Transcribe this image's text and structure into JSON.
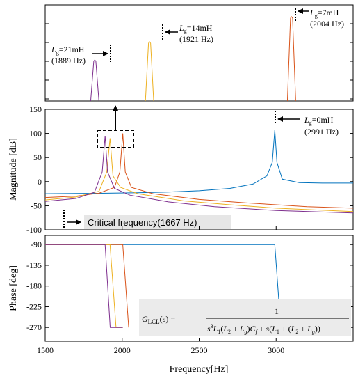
{
  "chart_data": [
    {
      "type": "line",
      "panel": "zoom",
      "xlim": [
        1860,
        2040
      ],
      "grid": false,
      "series": [
        {
          "color": "#7e2f8e",
          "peak_x": 1889
        },
        {
          "color": "#edb120",
          "peak_x": 1921
        },
        {
          "color": "#d95319",
          "peak_x": 2004
        }
      ],
      "annotations": [
        {
          "prefix": "L",
          "sub": "g",
          "value": "=21mH",
          "freq": "(1889 Hz)"
        },
        {
          "prefix": "L",
          "sub": "g",
          "value": "=14mH",
          "freq": "(1921 Hz)"
        },
        {
          "prefix": "L",
          "sub": "g",
          "value": "=7mH",
          "freq": "(2004 Hz)"
        }
      ]
    },
    {
      "type": "line",
      "panel": "magnitude",
      "ylabel": "Magnitude [dB]",
      "xlim": [
        1500,
        3500
      ],
      "ylim": [
        -100,
        150
      ],
      "yticks": [
        "150",
        "100",
        "50",
        "0",
        "-50",
        "-100"
      ],
      "grid": false,
      "series": [
        {
          "color": "#0072bd",
          "x": [
            1500,
            1700,
            1900,
            2100,
            2300,
            2500,
            2700,
            2850,
            2940,
            2975,
            2991,
            3005,
            3040,
            3150,
            3300,
            3500
          ],
          "y": [
            -25,
            -24.5,
            -24,
            -23,
            -21.5,
            -19,
            -14,
            -5,
            12,
            40,
            107,
            40,
            5,
            -2,
            -3,
            -3
          ]
        },
        {
          "color": "#d95319",
          "x": [
            1500,
            1700,
            1850,
            1950,
            1985,
            2004,
            2020,
            2060,
            2200,
            2500,
            2800,
            3000,
            3200,
            3500
          ],
          "y": [
            -33,
            -30,
            -24,
            -12,
            20,
            100,
            20,
            -12,
            -25,
            -37,
            -44,
            -48,
            -52,
            -55
          ]
        },
        {
          "color": "#edb120",
          "x": [
            1500,
            1700,
            1850,
            1900,
            1921,
            1940,
            1990,
            2100,
            2400,
            2700,
            3000,
            3200,
            3500
          ],
          "y": [
            -38,
            -32,
            -20,
            20,
            90,
            12,
            -12,
            -25,
            -40,
            -48,
            -55,
            -58,
            -62
          ]
        },
        {
          "color": "#7e2f8e",
          "x": [
            1500,
            1700,
            1820,
            1870,
            1889,
            1905,
            1950,
            2050,
            2300,
            2600,
            3000,
            3300,
            3500
          ],
          "y": [
            -41,
            -35,
            -22,
            20,
            95,
            20,
            -14,
            -28,
            -42,
            -52,
            -60,
            -63,
            -65
          ]
        }
      ],
      "annotations": [
        {
          "prefix": "L",
          "sub": "g",
          "value": "=0mH",
          "freq": "(2991 Hz)"
        },
        {
          "text": "Critical frequency(1667 Hz)"
        }
      ]
    },
    {
      "type": "line",
      "panel": "phase",
      "ylabel": "Phase [deg]",
      "xlabel": "Frequency[Hz]",
      "xlim": [
        1500,
        3500
      ],
      "ylim": [
        -300,
        -70
      ],
      "yticks": [
        "-90",
        "-135",
        "-180",
        "-225",
        "-270"
      ],
      "xticks": [
        "1500",
        "2000",
        "2500",
        "3000"
      ],
      "grid": false,
      "series": [
        {
          "color": "#0072bd",
          "x": [
            1500,
            2991,
            3030
          ],
          "y": [
            -90,
            -90,
            -270
          ]
        },
        {
          "color": "#d95319",
          "x": [
            1500,
            2004,
            2042
          ],
          "y": [
            -90,
            -90,
            -270
          ]
        },
        {
          "color": "#edb120",
          "x": [
            1500,
            1921,
            1960,
            2004
          ],
          "y": [
            -90,
            -90,
            -270,
            -270
          ]
        },
        {
          "color": "#7e2f8e",
          "x": [
            1500,
            1889,
            1922,
            2004
          ],
          "y": [
            -90,
            -90,
            -270,
            -270
          ]
        }
      ],
      "formula": {
        "lhs": "G",
        "lhs_sub": "LCL",
        "lhs_arg": "(s) =",
        "numerator": "1"
      }
    }
  ]
}
